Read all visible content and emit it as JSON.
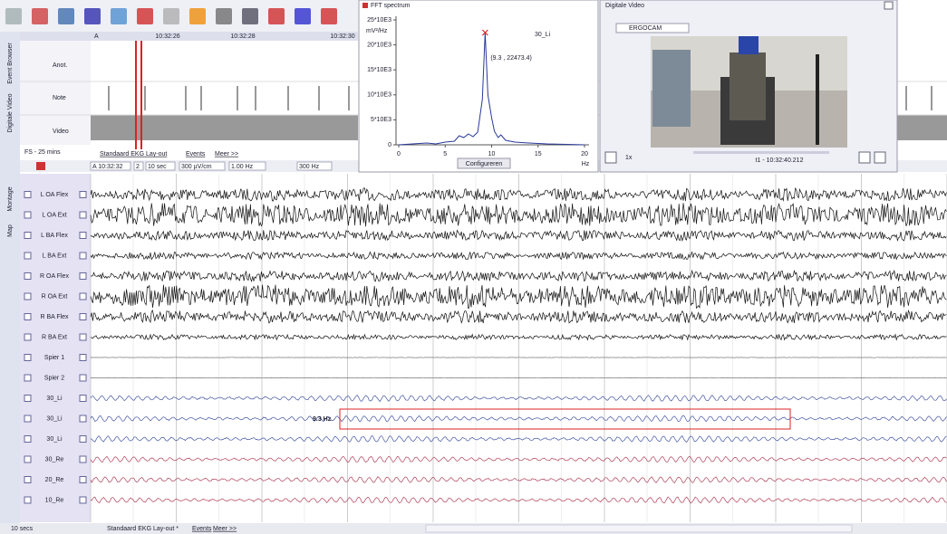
{
  "sidebar_tabs": [
    "Event Browser",
    "Digitale Video",
    "Montage",
    "Map"
  ],
  "event_browser": {
    "rows": [
      "Anot.",
      "Note",
      "Video"
    ],
    "time_labels": [
      "A",
      "10:32:26",
      "10:32:28",
      "10:32:30"
    ],
    "span": "FS - 25 mins",
    "tabs": [
      "Standaard EKG Lay-out",
      "Events",
      "Meer >>"
    ]
  },
  "fft_window": {
    "title": "FFT spectrum",
    "channel": "30_Li",
    "y_unit": "mV²/Hz",
    "y_ticks": [
      "25*10E3",
      "20*10E3",
      "15*10E3",
      "10*10E3",
      "5*10E3",
      "0"
    ],
    "x_ticks": [
      "0",
      "5",
      "10",
      "15",
      "20"
    ],
    "x_unit": "Hz",
    "peak_label": "(9.3 , 22473.4)",
    "button": "Configureren"
  },
  "video_window": {
    "title": "Digitale Video",
    "source": "ERGOCAM",
    "speed": "1x",
    "timestamp": "t1 - 10:32:40.212"
  },
  "trace_toolbar": [
    "A 10:32:32",
    "2",
    "10 sec",
    "300 µV/cm",
    "1.00 Hz",
    "300 Hz"
  ],
  "channels": [
    "L OA Flex",
    "L OA Ext",
    "L BA Flex",
    "L BA Ext",
    "R OA Flex",
    "R OA Ext",
    "R BA Flex",
    "R BA Ext",
    "Spier 1",
    "Spier 2",
    "30_Li",
    "30_Li",
    "30_Li",
    "30_Re",
    "20_Re",
    "10_Re"
  ],
  "annotation": "9.3 Hz",
  "status_bar": {
    "timebase": "10 secs",
    "layout": "Standaard EKG Lay-out *",
    "events": "Events",
    "more": "Meer >>"
  }
}
